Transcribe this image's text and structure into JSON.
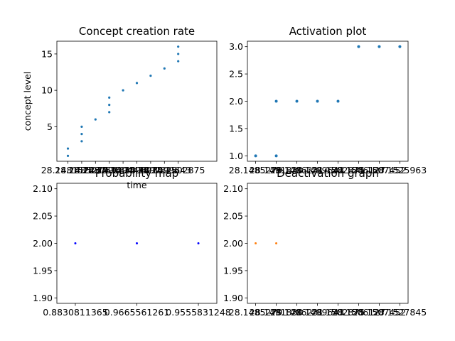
{
  "chart_data": [
    {
      "id": "concept",
      "type": "scatter",
      "title": "Concept creation rate",
      "xlabel": "time",
      "ylabel": "concept level",
      "color": "#1f77b4",
      "xlim": [
        0.2,
        11.8
      ],
      "ylim": [
        0.25,
        16.75
      ],
      "yticks": [
        5,
        10,
        15
      ],
      "x_tick_labels": [
        "28.1481522",
        "28.1485279",
        "28.1487592",
        "28.1491830",
        "28.1494478",
        "28.1496231",
        "28.1497822",
        "28.1499643",
        "28.1502875"
      ],
      "x": [
        1,
        1,
        2,
        2,
        2,
        3,
        4,
        4,
        4,
        5,
        6,
        7,
        8,
        9,
        9,
        9
      ],
      "y": [
        1,
        2,
        3,
        4,
        5,
        6,
        7,
        8,
        9,
        10,
        11,
        12,
        13,
        14,
        15,
        16
      ]
    },
    {
      "id": "activation",
      "type": "scatter",
      "title": "Activation plot",
      "xlabel": "",
      "ylabel": "",
      "color": "#1f77b4",
      "xlim": [
        0.6,
        8.4
      ],
      "ylim": [
        0.9,
        3.1
      ],
      "yticks": [
        1.0,
        1.5,
        2.0,
        2.5,
        3.0
      ],
      "ytick_labels": [
        "1.0",
        "1.5",
        "2.0",
        "2.5",
        "3.0"
      ],
      "x_tick_labels": [
        "28.1485279",
        "28.1491830",
        "28.1496231",
        "28.1499643",
        "28.1502875",
        "28.1506127",
        "28.1507452",
        "28.1525963"
      ],
      "x": [
        1,
        2,
        2,
        3,
        4,
        5,
        6,
        7,
        8
      ],
      "y": [
        1,
        1,
        2,
        2,
        2,
        2,
        3,
        3,
        3
      ]
    },
    {
      "id": "probability",
      "type": "scatter",
      "title": "Probability map",
      "xlabel": "",
      "ylabel": "",
      "color": "#0000ff",
      "xlim": [
        0.7,
        3.3
      ],
      "ylim": [
        1.89,
        2.11
      ],
      "yticks": [
        1.9,
        1.95,
        2.0,
        2.05,
        2.1
      ],
      "ytick_labels": [
        "1.90",
        "1.95",
        "2.00",
        "2.05",
        "2.10"
      ],
      "x_tick_labels": [
        "0.8830811365",
        "0.9665561261",
        "0.9555831248"
      ],
      "x": [
        1,
        2,
        3
      ],
      "y": [
        2,
        2,
        2
      ]
    },
    {
      "id": "deactivation",
      "type": "scatter",
      "title": "Deactivation graph",
      "xlabel": "",
      "ylabel": "",
      "color": "#ff7f0e",
      "xlim": [
        0.6,
        8.4
      ],
      "ylim": [
        1.89,
        2.11
      ],
      "yticks": [
        1.9,
        1.95,
        2.0,
        2.05,
        2.1
      ],
      "ytick_labels": [
        "1.90",
        "1.95",
        "2.00",
        "2.05",
        "2.10"
      ],
      "x_tick_labels": [
        "28.1485279",
        "28.1491830",
        "28.1496231",
        "28.1499643",
        "28.1502875",
        "28.1506127",
        "28.1507452",
        "28.1527845"
      ],
      "x": [
        1,
        2
      ],
      "y": [
        2,
        2
      ]
    }
  ]
}
